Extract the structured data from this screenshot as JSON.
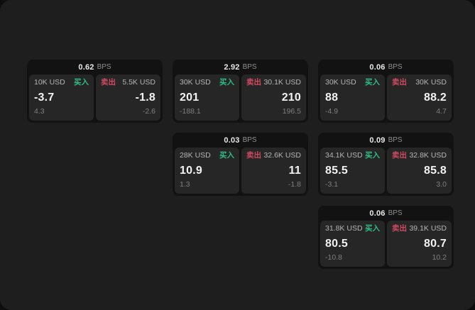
{
  "labels": {
    "bps_unit": "BPS",
    "buy": "买入",
    "sell": "卖出"
  },
  "colors": {
    "page_background": "#0e0e0e",
    "panel_background": "#1e1e1e",
    "card_background": "#121212",
    "cell_background": "#262626",
    "buy_green": "#2ebd85",
    "sell_red": "#d04a61",
    "primary_text": "#f2f2f2",
    "secondary_text": "#b5b5b5",
    "muted_text": "#7f7f7f"
  },
  "cards": [
    {
      "row": 1,
      "col": 1,
      "bps": "0.62",
      "buy": {
        "size": "10K USD",
        "value": "-3.7",
        "delta": "4.3"
      },
      "sell": {
        "size": "5.5K USD",
        "value": "-1.8",
        "delta": "-2.6"
      }
    },
    {
      "row": 1,
      "col": 2,
      "bps": "2.92",
      "buy": {
        "size": "30K USD",
        "value": "201",
        "delta": "-188.1"
      },
      "sell": {
        "size": "30.1K USD",
        "value": "210",
        "delta": "196.5"
      }
    },
    {
      "row": 1,
      "col": 3,
      "bps": "0.06",
      "buy": {
        "size": "30K USD",
        "value": "88",
        "delta": "-4.9"
      },
      "sell": {
        "size": "30K USD",
        "value": "88.2",
        "delta": "4.7"
      }
    },
    {
      "row": 2,
      "col": 2,
      "bps": "0.03",
      "buy": {
        "size": "28K USD",
        "value": "10.9",
        "delta": "1.3"
      },
      "sell": {
        "size": "32.6K USD",
        "value": "11",
        "delta": "-1.8"
      }
    },
    {
      "row": 2,
      "col": 3,
      "bps": "0.09",
      "buy": {
        "size": "34.1K USD",
        "value": "85.5",
        "delta": "-3.1"
      },
      "sell": {
        "size": "32.8K USD",
        "value": "85.8",
        "delta": "3.0"
      }
    },
    {
      "row": 3,
      "col": 3,
      "bps": "0.06",
      "buy": {
        "size": "31.8K USD",
        "value": "80.5",
        "delta": "-10.8"
      },
      "sell": {
        "size": "39.1K USD",
        "value": "80.7",
        "delta": "10.2"
      }
    }
  ]
}
